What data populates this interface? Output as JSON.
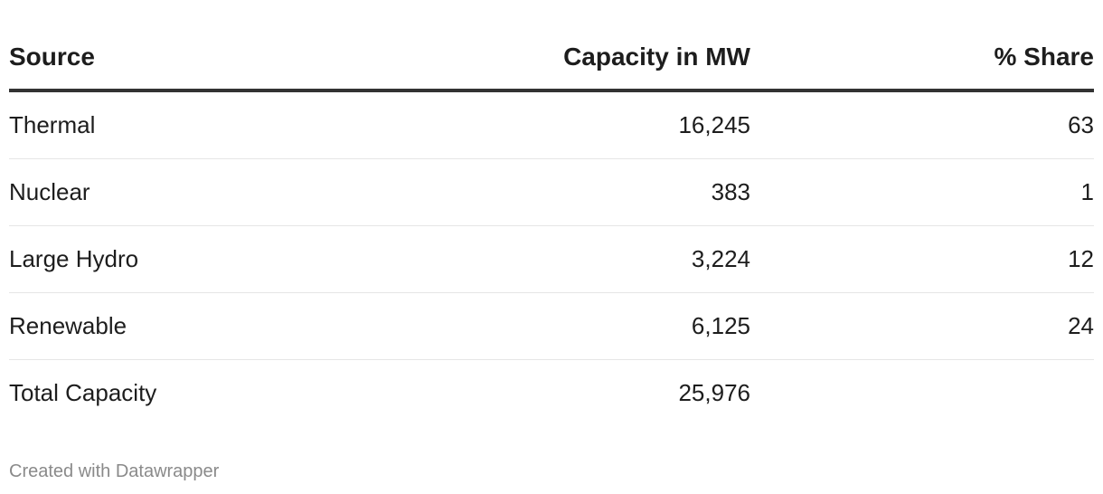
{
  "chart_data": {
    "type": "table",
    "columns": [
      "Source",
      "Capacity in MW",
      "% Share"
    ],
    "rows": [
      {
        "source": "Thermal",
        "capacity": "16,245",
        "share": "63"
      },
      {
        "source": "Nuclear",
        "capacity": "383",
        "share": "1"
      },
      {
        "source": "Large Hydro",
        "capacity": "3,224",
        "share": "12"
      },
      {
        "source": "Renewable",
        "capacity": "6,125",
        "share": "24"
      },
      {
        "source": "Total Capacity",
        "capacity": "25,976",
        "share": ""
      }
    ]
  },
  "footer": {
    "credit": "Created with Datawrapper"
  },
  "colors": {
    "text": "#1d1d1d",
    "header_rule": "#333333",
    "row_rule": "#e6e6e6",
    "credit": "#8a8a8a"
  }
}
